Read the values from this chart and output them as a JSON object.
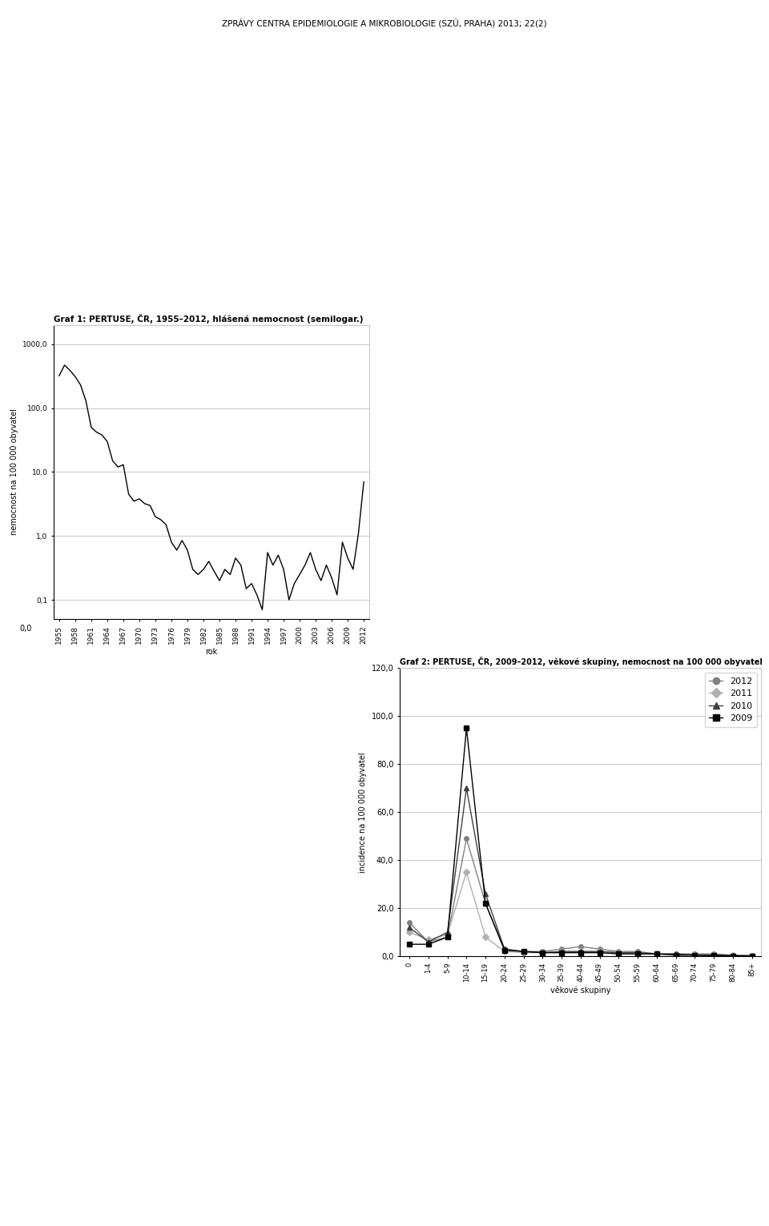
{
  "chart1_title": "Graf 1: PERTUSE, ČR, 1955–2012, hlášená nemocnost (semilogar.)",
  "chart1_ylabel": "nemocnost na 100 000 obyvatel",
  "chart1_xlabel": "rok",
  "chart1_years": [
    1955,
    1956,
    1957,
    1958,
    1959,
    1960,
    1961,
    1962,
    1963,
    1964,
    1965,
    1966,
    1967,
    1968,
    1969,
    1970,
    1971,
    1972,
    1973,
    1974,
    1975,
    1976,
    1977,
    1978,
    1979,
    1980,
    1981,
    1982,
    1983,
    1984,
    1985,
    1986,
    1987,
    1988,
    1989,
    1990,
    1991,
    1992,
    1993,
    1994,
    1995,
    1996,
    1997,
    1998,
    1999,
    2000,
    2001,
    2002,
    2003,
    2004,
    2005,
    2006,
    2007,
    2008,
    2009,
    2010,
    2011,
    2012
  ],
  "chart1_values": [
    320,
    470,
    390,
    310,
    230,
    130,
    50,
    42,
    38,
    30,
    15,
    12,
    13,
    4.5,
    3.5,
    3.8,
    3.2,
    3.0,
    2.0,
    1.8,
    1.5,
    0.8,
    0.6,
    0.85,
    0.6,
    0.3,
    0.25,
    0.3,
    0.4,
    0.28,
    0.2,
    0.3,
    0.25,
    0.45,
    0.35,
    0.15,
    0.18,
    0.12,
    0.07,
    0.55,
    0.35,
    0.5,
    0.3,
    0.1,
    0.18,
    0.25,
    0.35,
    0.55,
    0.3,
    0.2,
    0.35,
    0.22,
    0.12,
    0.8,
    0.45,
    0.3,
    1.1,
    7.0
  ],
  "chart1_yticks": [
    0.1,
    1.0,
    10.0,
    100.0,
    1000.0
  ],
  "chart1_ytick_labels": [
    "0,1",
    "1,0",
    "10,0",
    "100,0",
    "1000,0"
  ],
  "chart1_xtick_years": [
    1955,
    1958,
    1961,
    1964,
    1967,
    1970,
    1973,
    1976,
    1979,
    1982,
    1985,
    1988,
    1991,
    1994,
    1997,
    2000,
    2003,
    2006,
    2009,
    2012
  ],
  "chart2_title": "Graf 2: PERTUSE, ČR, 2009–2012, věkové skupiny, nemocnost na 100 000 obyvatel",
  "chart2_ylabel": "incidence na 100 000 obyvatel",
  "chart2_xlabel": "věkové skupiny",
  "chart2_categories": [
    "0",
    "1-4",
    "5-9",
    "10-14",
    "15-19",
    "20-24",
    "25-29",
    "30-34",
    "35-39",
    "40-44",
    "45-49",
    "50-54",
    "55-59",
    "60-64",
    "65-69",
    "70-74",
    "75-79",
    "80-84",
    "85+"
  ],
  "chart2_2012": [
    14,
    6,
    8,
    49,
    22,
    3,
    2,
    2,
    3,
    4,
    3,
    2,
    2,
    1,
    1,
    1,
    1,
    0.5,
    0.3
  ],
  "chart2_2011": [
    10,
    7,
    9,
    35,
    8,
    2,
    1.5,
    1.5,
    2,
    2,
    2,
    1.5,
    1,
    1,
    0.5,
    0.5,
    0.3,
    0.3,
    0.2
  ],
  "chart2_2010": [
    12,
    6,
    10,
    70,
    26,
    3,
    2,
    1.5,
    2,
    2,
    2,
    1.5,
    1.5,
    1,
    1,
    0.5,
    0.5,
    0.3,
    0.2
  ],
  "chart2_2009": [
    5,
    5,
    8,
    95,
    22,
    2.5,
    2,
    1.5,
    1.5,
    1.5,
    1.5,
    1,
    1,
    1,
    0.5,
    0.5,
    0.3,
    0.2,
    0.1
  ],
  "chart2_yticks": [
    0.0,
    20.0,
    40.0,
    60.0,
    80.0,
    100.0,
    120.0
  ],
  "chart2_ytick_labels": [
    "0,0",
    "20,0",
    "40,0",
    "60,0",
    "80,0",
    "100,0",
    "120,0"
  ],
  "chart2_ylim": [
    0,
    120
  ],
  "color_2012": "#808080",
  "color_2011": "#b0b0b0",
  "color_2010": "#404040",
  "color_2009": "#000000",
  "marker_2012": "o",
  "marker_2011": "D",
  "marker_2010": "^",
  "marker_2009": "s",
  "bg_color": "#ffffff",
  "text_color": "#000000",
  "page_title": "ZPRÁVY CENTRA EPIDEMIOLOGIE A MIKROBIOLOGIE (SZÚ, PRAHA) 2013; 22(2)"
}
